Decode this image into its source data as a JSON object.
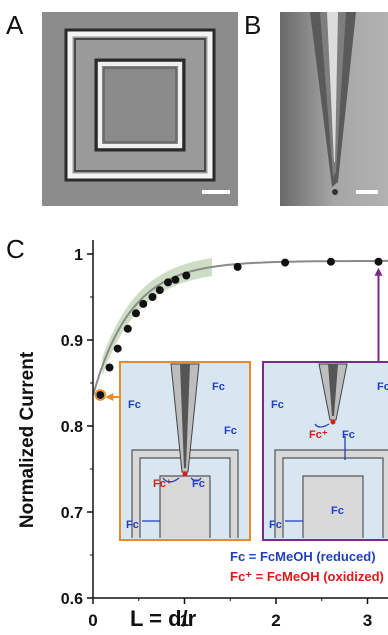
{
  "panels": {
    "a": {
      "label": "A"
    },
    "b": {
      "label": "B"
    },
    "c": {
      "label": "C"
    }
  },
  "chart_data": {
    "type": "scatter",
    "xlabel": "L = d/r",
    "ylabel": "Normalized Current",
    "xlim": [
      0,
      3.3
    ],
    "ylim": [
      0.6,
      1.0
    ],
    "x_ticks": [
      "0",
      "1",
      "2",
      "3"
    ],
    "y_ticks": [
      "0.6",
      "0.7",
      "0.8",
      "0.9",
      "1"
    ],
    "grid": false,
    "series": [
      {
        "values": [
          {
            "x": 0.08,
            "y": 0.836
          },
          {
            "x": 0.18,
            "y": 0.868
          },
          {
            "x": 0.27,
            "y": 0.89
          },
          {
            "x": 0.38,
            "y": 0.913
          },
          {
            "x": 0.47,
            "y": 0.931
          },
          {
            "x": 0.55,
            "y": 0.942
          },
          {
            "x": 0.65,
            "y": 0.95
          },
          {
            "x": 0.73,
            "y": 0.958
          },
          {
            "x": 0.82,
            "y": 0.967
          },
          {
            "x": 0.9,
            "y": 0.97
          },
          {
            "x": 1.02,
            "y": 0.975
          },
          {
            "x": 1.58,
            "y": 0.985
          },
          {
            "x": 2.1,
            "y": 0.99
          },
          {
            "x": 2.6,
            "y": 0.991
          },
          {
            "x": 3.12,
            "y": 0.991
          }
        ]
      }
    ],
    "colors": {
      "fit_line": "#8a8a8a",
      "fit_band": "#bcd3b0",
      "orange": "#e88a2a",
      "purple": "#7a2a8a",
      "inset_bg": "#d8e6f2",
      "blue_text": "#1f3fbf",
      "red_text": "#e01818"
    },
    "insets": [
      {
        "labels": [
          "Fc",
          "Fc",
          "Fc",
          "Fc⁺",
          "Fc",
          "Fc"
        ]
      },
      {
        "labels": [
          "Fc",
          "Fc",
          "Fc⁺",
          "Fc",
          "Fc",
          "Fc",
          "Fc"
        ]
      }
    ],
    "legend": {
      "reduced": "Fc = FcMeOH (reduced)",
      "oxidized": "Fc⁺ = FcMeOH (oxidized)"
    }
  }
}
